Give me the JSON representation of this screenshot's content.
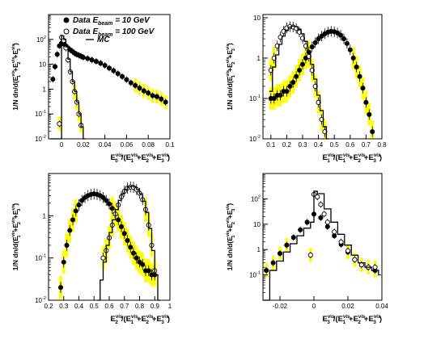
{
  "chart_data": [
    {
      "type": "scatter",
      "ylabel": "1/N dn/d(E^vis_1+E^vis_2+E^vis_3)",
      "xlabel": "E^vis_0/(E^vis_1+E^vis_2+E^vis_3)",
      "xlim": [
        -0.012,
        0.1
      ],
      "ylim_log": [
        0.01,
        1000
      ],
      "x_ticks": [
        "0",
        "0.02",
        "0.04",
        "0.06",
        "0.08",
        "0.1"
      ],
      "y_ticks": [
        "10^-2",
        "10^-1",
        "1",
        "10",
        "10^2"
      ],
      "legend": {
        "position": "top-right",
        "entries": [
          "Data E_beam = 10 GeV",
          "Data E_beam = 100 GeV",
          "MC"
        ]
      },
      "series": [
        {
          "name": "Data E_beam = 10 GeV",
          "x": [
            -0.008,
            -0.006,
            -0.004,
            -0.002,
            0.0,
            0.002,
            0.004,
            0.006,
            0.008,
            0.01,
            0.012,
            0.014,
            0.016,
            0.018,
            0.02,
            0.024,
            0.028,
            0.032,
            0.036,
            0.04,
            0.044,
            0.048,
            0.052,
            0.056,
            0.06,
            0.064,
            0.068,
            0.072,
            0.076,
            0.08,
            0.084,
            0.088,
            0.092,
            0.096
          ],
          "y": [
            2.5,
            8,
            25,
            55,
            70,
            65,
            55,
            45,
            38,
            33,
            28,
            25,
            23,
            21,
            19,
            17,
            15,
            13,
            11,
            9,
            7,
            5.5,
            4.2,
            3.2,
            2.4,
            1.8,
            1.4,
            1.1,
            0.85,
            0.7,
            0.55,
            0.5,
            0.4,
            0.3
          ]
        },
        {
          "name": "Data E_beam = 100 GeV",
          "x": [
            -0.002,
            0.0,
            0.002,
            0.004,
            0.006,
            0.008,
            0.01,
            0.012,
            0.014,
            0.016,
            0.018
          ],
          "y": [
            0.04,
            120,
            90,
            45,
            15,
            5,
            2,
            0.8,
            0.3,
            0.1,
            0.035
          ]
        },
        {
          "name": "MC",
          "kind": "step",
          "x": [
            -0.01,
            -0.008,
            -0.006,
            -0.004,
            -0.002,
            0.0,
            0.002,
            0.004,
            0.006,
            0.008,
            0.01,
            0.012,
            0.014,
            0.016,
            0.018,
            0.02
          ],
          "y": [
            0.01,
            0.01,
            0.01,
            0.01,
            0.01,
            140,
            100,
            50,
            16,
            5,
            2,
            0.8,
            0.3,
            0.1,
            0.03,
            0.01
          ]
        }
      ]
    },
    {
      "type": "scatter",
      "ylabel": "1/N dn/d(E^vis_1+E^vis_2+E^vis_3)",
      "xlabel": "E^vis_1/(E^vis_1+E^vis_2+E^vis_3)",
      "xlim": [
        0.05,
        0.8
      ],
      "ylim_log": [
        0.01,
        12
      ],
      "x_ticks": [
        "0.1",
        "0.2",
        "0.3",
        "0.4",
        "0.5",
        "0.6",
        "0.7",
        "0.8"
      ],
      "y_ticks": [
        "10^-2",
        "10^-1",
        "1",
        "10"
      ],
      "series": [
        {
          "name": "Data E_beam = 10 GeV",
          "x": [
            0.1,
            0.12,
            0.14,
            0.16,
            0.18,
            0.2,
            0.22,
            0.24,
            0.26,
            0.28,
            0.3,
            0.32,
            0.34,
            0.36,
            0.38,
            0.4,
            0.42,
            0.44,
            0.46,
            0.48,
            0.5,
            0.52,
            0.54,
            0.56,
            0.58,
            0.6,
            0.62,
            0.64,
            0.66,
            0.68,
            0.7,
            0.72,
            0.74
          ],
          "y": [
            0.1,
            0.1,
            0.12,
            0.12,
            0.15,
            0.15,
            0.2,
            0.25,
            0.35,
            0.5,
            0.7,
            1.0,
            1.4,
            1.9,
            2.4,
            3.0,
            3.5,
            4.0,
            4.4,
            4.6,
            4.5,
            4.2,
            3.7,
            3.0,
            2.3,
            1.6,
            1.0,
            0.6,
            0.35,
            0.18,
            0.08,
            0.04,
            0.015
          ]
        },
        {
          "name": "Data E_beam = 100 GeV",
          "x": [
            0.1,
            0.12,
            0.14,
            0.16,
            0.18,
            0.2,
            0.22,
            0.24,
            0.26,
            0.28,
            0.3,
            0.32,
            0.34,
            0.36,
            0.38,
            0.4,
            0.42,
            0.44
          ],
          "y": [
            0.5,
            1.0,
            2.0,
            3.3,
            4.6,
            5.6,
            6.0,
            5.9,
            5.4,
            4.4,
            3.1,
            2.0,
            1.1,
            0.5,
            0.2,
            0.08,
            0.03,
            0.015
          ]
        },
        {
          "name": "MC",
          "kind": "step",
          "x": [
            0.09,
            0.11,
            0.13,
            0.15,
            0.17,
            0.19,
            0.21,
            0.23,
            0.25,
            0.27,
            0.29,
            0.31,
            0.33,
            0.35,
            0.37,
            0.39,
            0.41,
            0.43,
            0.45
          ],
          "y": [
            0.15,
            0.6,
            1.2,
            2.2,
            3.5,
            4.8,
            5.8,
            6.2,
            6.0,
            5.2,
            4.0,
            2.6,
            1.5,
            0.7,
            0.3,
            0.12,
            0.05,
            0.02,
            0.01
          ]
        }
      ]
    },
    {
      "type": "scatter",
      "ylabel": "1/N dn/d(E^vis_1+E^vis_2+E^vis_3)",
      "xlabel": "E^vis_2/(E^vis_1+E^vis_2+E^vis_3)",
      "xlim": [
        0.2,
        1.0
      ],
      "ylim_log": [
        0.01,
        10
      ],
      "x_ticks": [
        "0.2",
        "0.3",
        "0.4",
        "0.5",
        "0.6",
        "0.7",
        "0.8",
        "0.9",
        "1"
      ],
      "y_ticks": [
        "10^-2",
        "10^-1",
        "1"
      ],
      "series": [
        {
          "name": "Data E_beam = 10 GeV",
          "x": [
            0.28,
            0.3,
            0.32,
            0.34,
            0.36,
            0.38,
            0.4,
            0.42,
            0.44,
            0.46,
            0.48,
            0.5,
            0.52,
            0.54,
            0.56,
            0.58,
            0.6,
            0.62,
            0.64,
            0.66,
            0.68,
            0.7,
            0.72,
            0.74,
            0.76,
            0.78,
            0.8,
            0.82,
            0.84,
            0.86,
            0.88,
            0.9
          ],
          "y": [
            0.02,
            0.08,
            0.2,
            0.45,
            0.8,
            1.3,
            1.8,
            2.3,
            2.7,
            3.0,
            3.2,
            3.3,
            3.2,
            3.0,
            2.7,
            2.3,
            1.9,
            1.5,
            1.1,
            0.8,
            0.55,
            0.38,
            0.26,
            0.18,
            0.13,
            0.1,
            0.08,
            0.07,
            0.05,
            0.05,
            0.04,
            0.04
          ]
        },
        {
          "name": "Data E_beam = 100 GeV",
          "x": [
            0.56,
            0.58,
            0.6,
            0.62,
            0.64,
            0.66,
            0.68,
            0.7,
            0.72,
            0.74,
            0.76,
            0.78,
            0.8,
            0.82,
            0.84,
            0.86,
            0.88,
            0.9
          ],
          "y": [
            0.1,
            0.15,
            0.3,
            0.6,
            1.1,
            1.8,
            2.8,
            3.8,
            4.5,
            4.8,
            4.7,
            4.2,
            3.4,
            2.4,
            1.4,
            0.6,
            0.2,
            0.05
          ]
        },
        {
          "name": "MC",
          "kind": "step",
          "x": [
            0.52,
            0.54,
            0.56,
            0.58,
            0.6,
            0.62,
            0.64,
            0.66,
            0.68,
            0.7,
            0.72,
            0.74,
            0.76,
            0.78,
            0.8,
            0.82,
            0.84,
            0.86,
            0.88,
            0.9,
            0.92
          ],
          "y": [
            0.01,
            0.03,
            0.08,
            0.2,
            0.4,
            0.8,
            1.4,
            2.3,
            3.3,
            4.2,
            4.8,
            5.0,
            4.8,
            4.2,
            3.3,
            2.2,
            1.2,
            0.5,
            0.15,
            0.04,
            0.01
          ]
        }
      ]
    },
    {
      "type": "scatter",
      "ylabel": "1/N dn/d(E^vis_1+E^vis_2+E^vis_3)",
      "xlabel": "E^vis_3/(E^vis_1+E^vis_2+E^vis_3)",
      "xlim": [
        -0.03,
        0.04
      ],
      "ylim_log": [
        0.01,
        1000
      ],
      "x_ticks": [
        "-0.02",
        "0",
        "0.02",
        "0.04"
      ],
      "y_ticks": [
        "10^-1",
        "1",
        "10",
        "10^2"
      ],
      "series": [
        {
          "name": "Data E_beam = 10 GeV",
          "x": [
            -0.028,
            -0.024,
            -0.02,
            -0.016,
            -0.012,
            -0.008,
            -0.004,
            0.0,
            0.004,
            0.008,
            0.012,
            0.016,
            0.02,
            0.024,
            0.028,
            0.032,
            0.036
          ],
          "y": [
            0.15,
            0.3,
            0.7,
            1.5,
            3,
            6,
            12,
            25,
            18,
            8,
            3.5,
            1.6,
            0.8,
            0.4,
            0.25,
            0.2,
            0.15
          ]
        },
        {
          "name": "Data E_beam = 100 GeV",
          "x": [
            -0.002,
            0.0,
            0.002,
            0.004,
            0.006,
            0.008,
            0.012,
            0.016,
            0.02,
            0.024,
            0.028,
            0.032,
            0.036
          ],
          "y": [
            0.6,
            150,
            120,
            60,
            25,
            12,
            5,
            2,
            0.9,
            0.4,
            0.25,
            0.2,
            0.2
          ]
        },
        {
          "name": "MC",
          "kind": "step",
          "x": [
            -0.03,
            -0.026,
            -0.022,
            -0.018,
            -0.014,
            -0.01,
            -0.006,
            -0.002,
            0.0,
            0.002,
            0.006,
            0.01,
            0.014,
            0.018,
            0.022,
            0.026,
            0.03,
            0.034,
            0.038
          ],
          "y": [
            0.01,
            0.15,
            0.35,
            0.8,
            1.7,
            3.5,
            7,
            12,
            200,
            160,
            40,
            12,
            4,
            1.5,
            0.6,
            0.3,
            0.2,
            0.15,
            0.1
          ]
        }
      ]
    }
  ]
}
